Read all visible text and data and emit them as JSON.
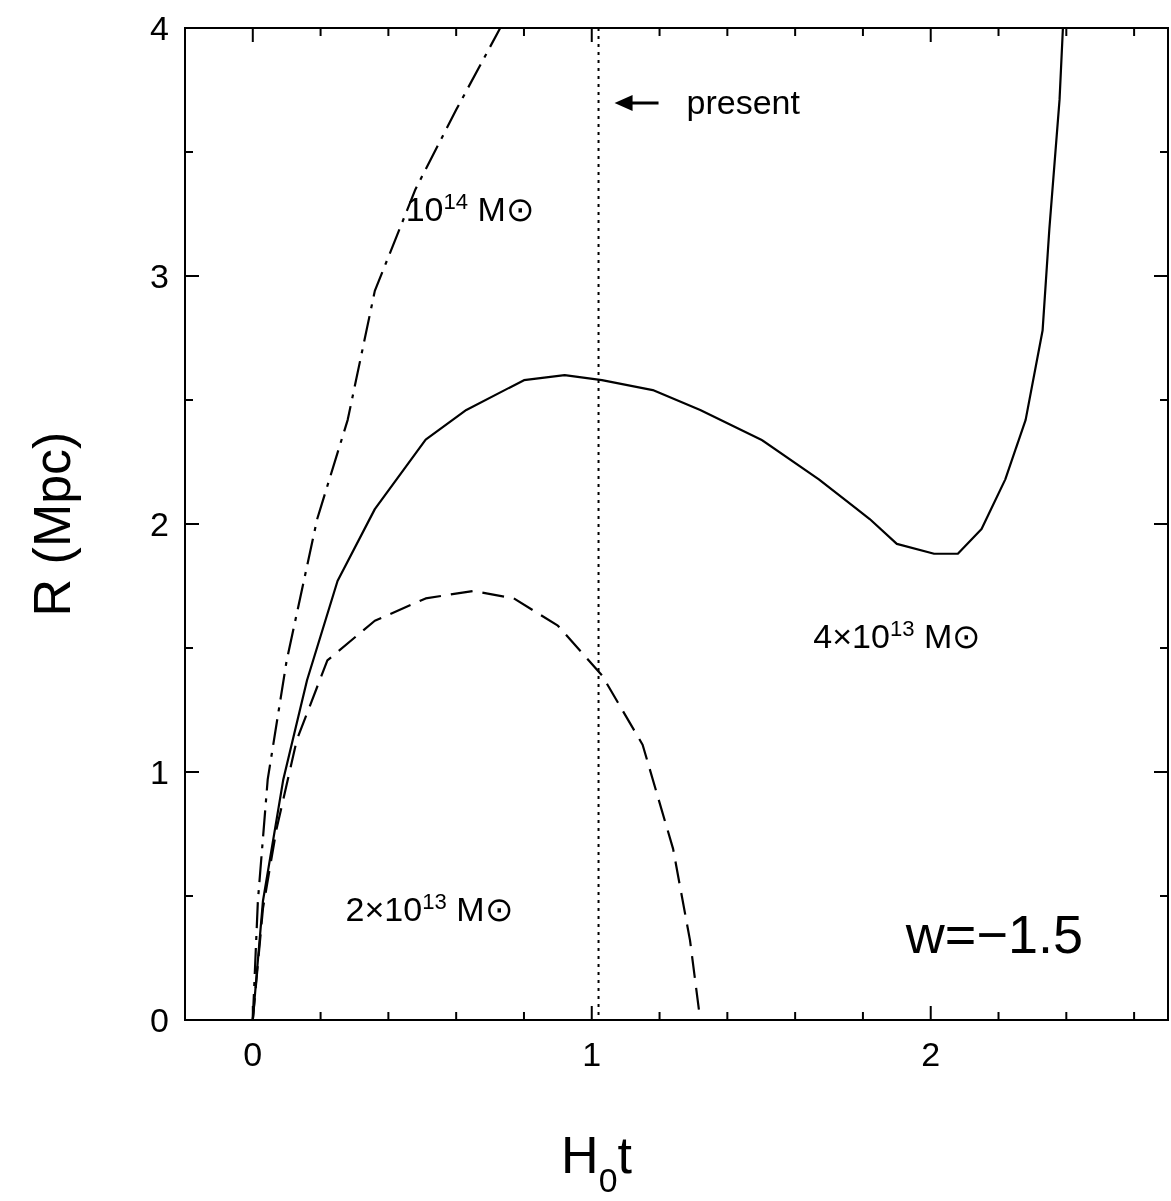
{
  "chart_data": {
    "type": "line",
    "xlabel": "H$_{0}$t",
    "ylabel": "R (Mpc)",
    "xlim": [
      -0.2,
      2.7
    ],
    "ylim": [
      0,
      4
    ],
    "xticks": [
      0,
      {
        "value": 0.2,
        "label": null
      },
      {
        "value": 0.4,
        "label": null
      },
      {
        "value": 0.6,
        "label": null
      },
      {
        "value": 0.8,
        "label": null
      },
      1,
      {
        "value": 1.2,
        "label": null
      },
      {
        "value": 1.4,
        "label": null
      },
      {
        "value": 1.6,
        "label": null
      },
      {
        "value": 1.8,
        "label": null
      },
      2,
      {
        "value": 2.2,
        "label": null
      },
      {
        "value": 2.4,
        "label": null
      },
      {
        "value": 2.6,
        "label": null
      }
    ],
    "yticks": [
      0,
      {
        "value": 0.5,
        "label": null
      },
      1,
      {
        "value": 1.5,
        "label": null
      },
      2,
      {
        "value": 2.5,
        "label": null
      },
      3,
      {
        "value": 3.5,
        "label": null
      },
      4
    ],
    "grid": false,
    "marker": "none",
    "series": [
      {
        "name": "10$^{14}$ M⊙",
        "color": "#000000",
        "line_style": "dashdot",
        "x": [
          0,
          0.015,
          0.044,
          0.1,
          0.19,
          0.28,
          0.36,
          0.48,
          0.6,
          0.73
        ],
        "values": [
          0,
          0.48,
          0.97,
          1.45,
          2.02,
          2.42,
          2.94,
          3.35,
          3.67,
          4.0
        ]
      },
      {
        "name": "4×10$^{13}$ M⊙",
        "color": "#000000",
        "line_style": "solid",
        "x": [
          0,
          0.03,
          0.09,
          0.16,
          0.25,
          0.36,
          0.51,
          0.63,
          0.8,
          0.92,
          1.03,
          1.18,
          1.32,
          1.5,
          1.67,
          1.82,
          1.9,
          2.01,
          2.08,
          2.15,
          2.22,
          2.28,
          2.33,
          2.35,
          2.38,
          2.39
        ],
        "values": [
          0,
          0.48,
          0.97,
          1.37,
          1.77,
          2.06,
          2.34,
          2.46,
          2.58,
          2.6,
          2.58,
          2.54,
          2.46,
          2.34,
          2.18,
          2.02,
          1.92,
          1.88,
          1.88,
          1.98,
          2.18,
          2.42,
          2.78,
          3.19,
          3.71,
          4.0
        ]
      },
      {
        "name": "2×10$^{13}$ M⊙",
        "color": "#000000",
        "line_style": "dashed",
        "x": [
          0,
          0.03,
          0.07,
          0.13,
          0.22,
          0.36,
          0.51,
          0.65,
          0.77,
          0.9,
          1.03,
          1.15,
          1.24,
          1.29,
          1.32
        ],
        "values": [
          0,
          0.45,
          0.77,
          1.13,
          1.45,
          1.61,
          1.7,
          1.73,
          1.7,
          1.59,
          1.39,
          1.11,
          0.69,
          0.32,
          0
        ]
      }
    ],
    "ref_lines": [
      {
        "axis": "x",
        "value": 1.02,
        "label": "present",
        "line_style": "dotted",
        "color": "#000000"
      }
    ],
    "annotations": [
      "w=−1.5"
    ]
  }
}
